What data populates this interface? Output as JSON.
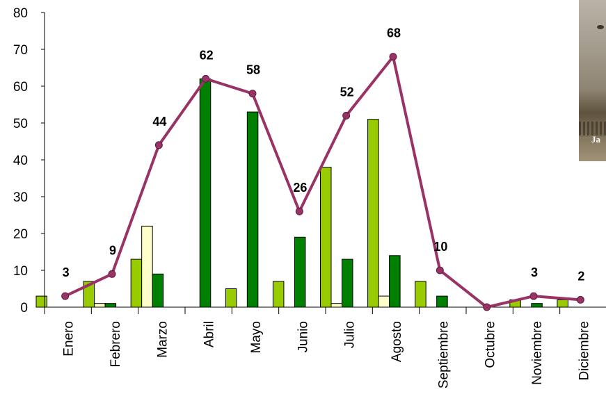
{
  "chart_data": {
    "type": "bar",
    "categories": [
      "Enero",
      "Febrero",
      "Marzo",
      "Abril",
      "Mayo",
      "Junio",
      "Julio",
      "Agosto",
      "Septiembre",
      "Octubre",
      "Noviembre",
      "Diciembre"
    ],
    "ylim": [
      0,
      80
    ],
    "yticks": [
      "0",
      "10",
      "20",
      "30",
      "40",
      "50",
      "60",
      "70",
      "80"
    ],
    "grid": false,
    "series": [
      {
        "type": "bar",
        "color": "#99cc00",
        "values": [
          3,
          7,
          13,
          0,
          5,
          7,
          38,
          51,
          7,
          0,
          2,
          2
        ]
      },
      {
        "type": "bar",
        "color": "#ffffcc",
        "values": [
          0,
          1,
          22,
          0,
          0,
          0,
          1,
          3,
          0,
          0,
          0,
          0
        ]
      },
      {
        "type": "bar",
        "color": "#008000",
        "values": [
          0,
          1,
          9,
          62,
          53,
          19,
          13,
          14,
          3,
          0,
          1,
          0
        ]
      },
      {
        "type": "line",
        "color": "#993366",
        "values": [
          3,
          9,
          44,
          62,
          58,
          26,
          52,
          68,
          10,
          0,
          3,
          2
        ],
        "labels": [
          "3",
          "9",
          "44",
          "62",
          "58",
          "26",
          "52",
          "68",
          "10",
          "",
          "3",
          "2"
        ]
      }
    ]
  },
  "photo": {
    "caption": "Ja",
    "icon": "bird-photo"
  }
}
